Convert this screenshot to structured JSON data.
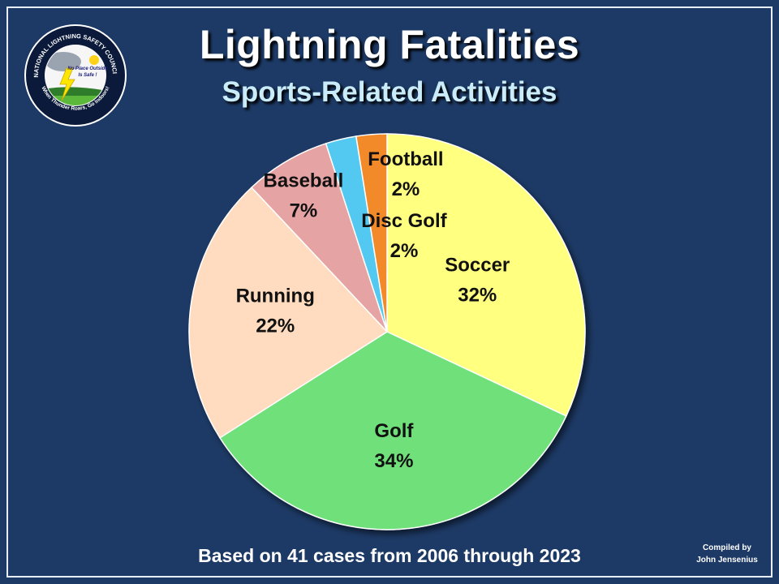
{
  "header": {
    "title": "Lightning Fatalities",
    "subtitle": "Sports-Related Activities"
  },
  "logo": {
    "ring_top": "NATIONAL LIGHTNING SAFETY COUNCIL",
    "ring_bottom": "When Thunder Roars, Go Indoors!",
    "line1": "No Place Outside",
    "line2": "Is Safe !"
  },
  "chart_data": {
    "type": "pie",
    "title": "Lightning Fatalities",
    "subtitle": "Sports-Related Activities",
    "start_angle_deg": 0,
    "direction": "clockwise",
    "slices": [
      {
        "label": "Soccer",
        "value": 32,
        "display": "32%",
        "color": "#ffff80"
      },
      {
        "label": "Golf",
        "value": 34,
        "display": "34%",
        "color": "#70e07a"
      },
      {
        "label": "Running",
        "value": 22,
        "display": "22%",
        "color": "#ffdcbf"
      },
      {
        "label": "Baseball",
        "value": 7,
        "display": "7%",
        "color": "#e6a3a3"
      },
      {
        "label": "Football",
        "value": 2.5,
        "display": "2%",
        "color": "#52c9f2"
      },
      {
        "label": "Disc Golf",
        "value": 2.5,
        "display": "2%",
        "color": "#f28a2c"
      }
    ]
  },
  "footer": {
    "note": "Based on 41 cases from 2006 through 2023",
    "credit_line1": "Compiled by",
    "credit_line2": "John Jensenius"
  }
}
